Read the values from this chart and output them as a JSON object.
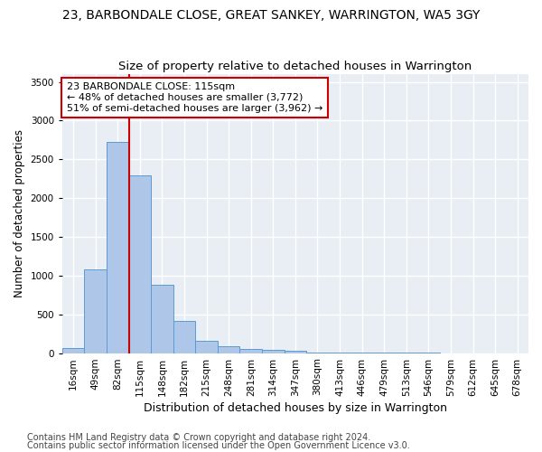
{
  "title": "23, BARBONDALE CLOSE, GREAT SANKEY, WARRINGTON, WA5 3GY",
  "subtitle": "Size of property relative to detached houses in Warrington",
  "xlabel": "Distribution of detached houses by size in Warrington",
  "ylabel": "Number of detached properties",
  "categories": [
    "16sqm",
    "49sqm",
    "82sqm",
    "115sqm",
    "148sqm",
    "182sqm",
    "215sqm",
    "248sqm",
    "281sqm",
    "314sqm",
    "347sqm",
    "380sqm",
    "413sqm",
    "446sqm",
    "479sqm",
    "513sqm",
    "546sqm",
    "579sqm",
    "612sqm",
    "645sqm",
    "678sqm"
  ],
  "values": [
    60,
    1080,
    2720,
    2290,
    880,
    415,
    160,
    90,
    55,
    40,
    25,
    10,
    5,
    3,
    2,
    1,
    1,
    0,
    0,
    0,
    0
  ],
  "bar_color": "#aec6e8",
  "bar_edge_color": "#5b9bd5",
  "vline_index": 3,
  "vline_color": "#cc0000",
  "annotation_line1": "23 BARBONDALE CLOSE: 115sqm",
  "annotation_line2": "← 48% of detached houses are smaller (3,772)",
  "annotation_line3": "51% of semi-detached houses are larger (3,962) →",
  "annotation_box_color": "#ffffff",
  "annotation_box_edge": "#cc0000",
  "ylim": [
    0,
    3600
  ],
  "yticks": [
    0,
    500,
    1000,
    1500,
    2000,
    2500,
    3000,
    3500
  ],
  "background_color": "#e8eef4",
  "grid_color": "#ffffff",
  "footer1": "Contains HM Land Registry data © Crown copyright and database right 2024.",
  "footer2": "Contains public sector information licensed under the Open Government Licence v3.0.",
  "title_fontsize": 10,
  "subtitle_fontsize": 9.5,
  "xlabel_fontsize": 9,
  "ylabel_fontsize": 8.5,
  "tick_fontsize": 7.5,
  "annotation_fontsize": 8,
  "footer_fontsize": 7
}
